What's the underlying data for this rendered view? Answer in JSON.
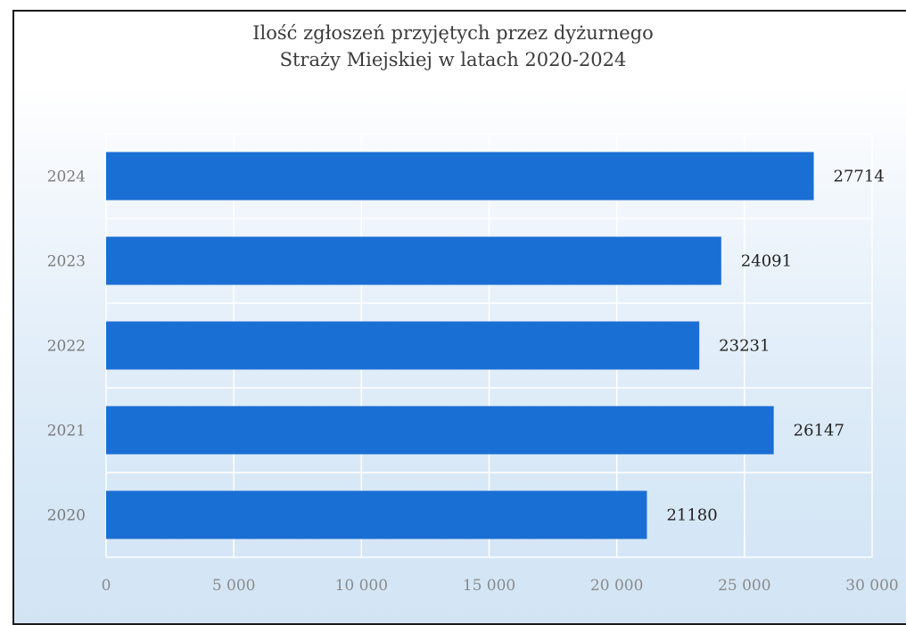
{
  "chart_data": {
    "type": "bar",
    "orientation": "horizontal",
    "title_lines": [
      "Ilość zgłoszeń przyjętych przez dyżurnego",
      "Straży Miejskiej w latach 2020-2024"
    ],
    "categories": [
      "2024",
      "2023",
      "2022",
      "2021",
      "2020"
    ],
    "values": [
      27714,
      24091,
      23231,
      26147,
      21180
    ],
    "data_labels": [
      "27714",
      "24091",
      "23231",
      "26147",
      "21180"
    ],
    "xlim": [
      0,
      30000
    ],
    "x_ticks": [
      0,
      5000,
      10000,
      15000,
      20000,
      25000,
      30000
    ],
    "x_tick_labels": [
      "0",
      "5 000",
      "10 000",
      "15 000",
      "20 000",
      "25 000",
      "30 000"
    ],
    "grid": true,
    "legend": "none",
    "bar_color": "#1a6fd4",
    "xlabel": "",
    "ylabel": ""
  }
}
